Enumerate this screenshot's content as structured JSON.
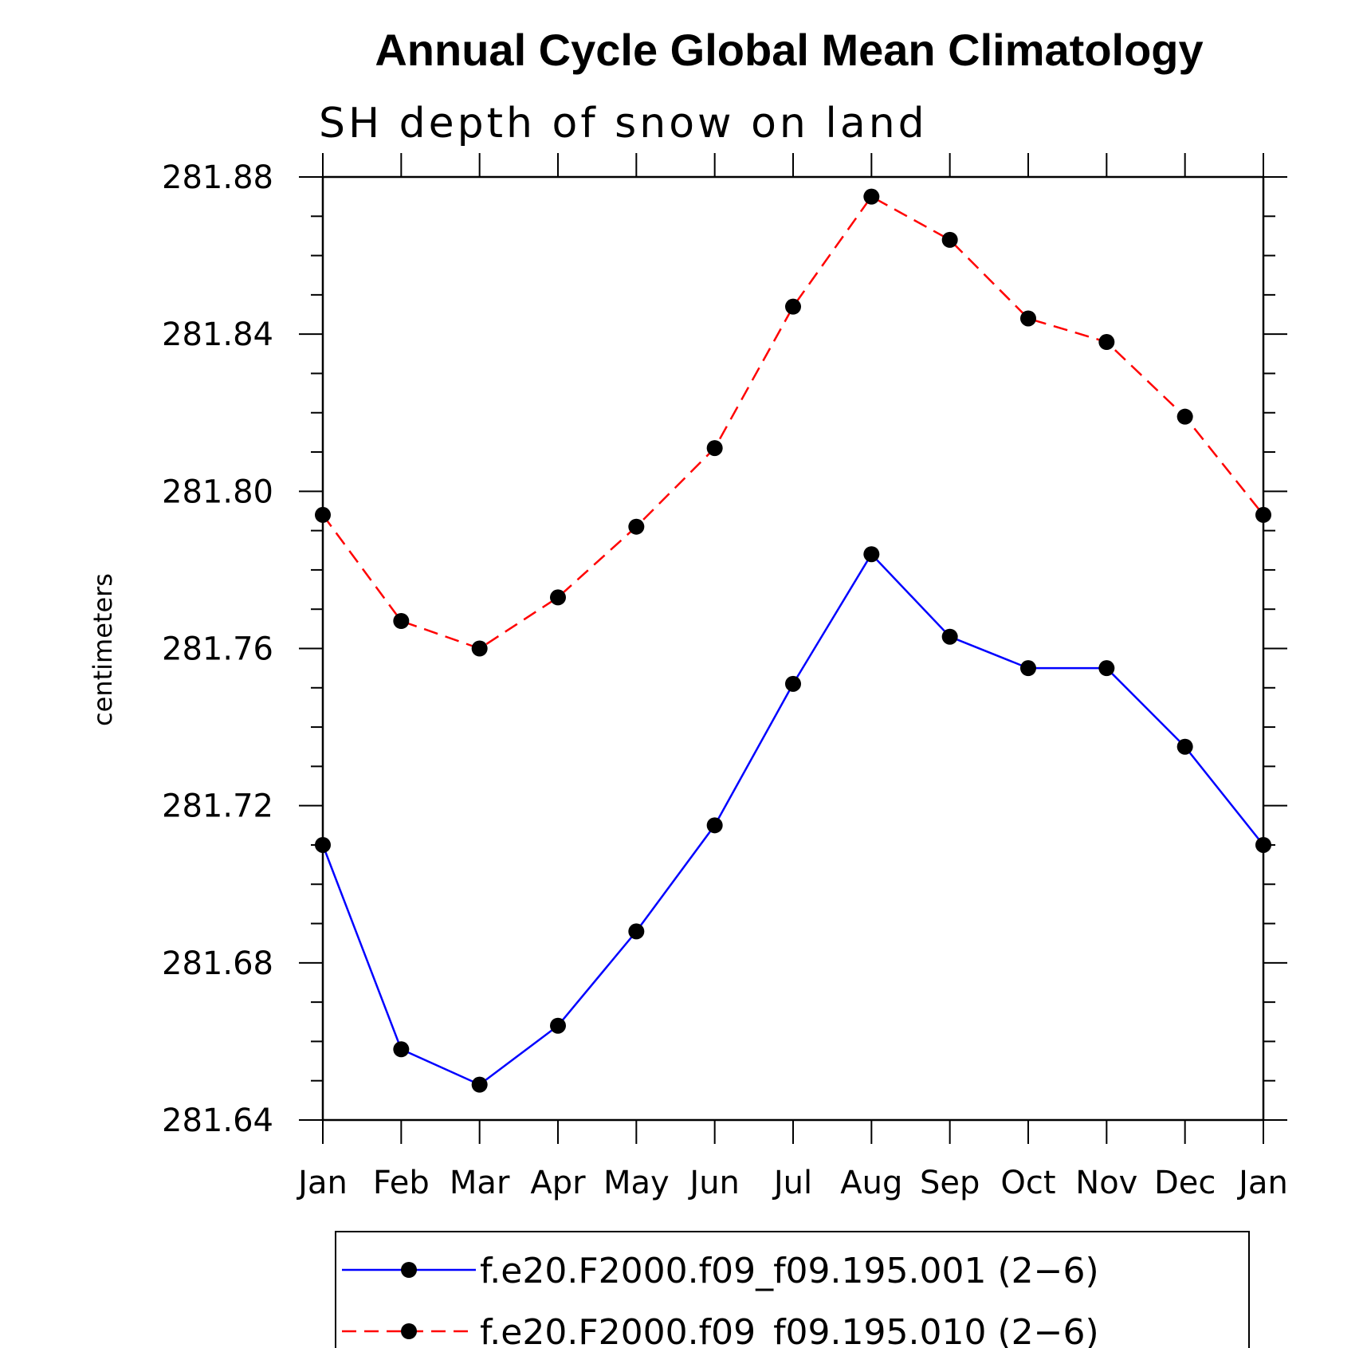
{
  "chart_data": {
    "type": "line",
    "title": "Annual Cycle Global Mean Climatology",
    "subtitle": "SH depth of snow on land",
    "xlabel": "",
    "ylabel": "centimeters",
    "categories": [
      "Jan",
      "Feb",
      "Mar",
      "Apr",
      "May",
      "Jun",
      "Jul",
      "Aug",
      "Sep",
      "Oct",
      "Nov",
      "Dec",
      "Jan"
    ],
    "ylim": [
      281.64,
      281.88
    ],
    "yticks": [
      "281.64",
      "281.68",
      "281.72",
      "281.76",
      "281.80",
      "281.84",
      "281.88"
    ],
    "series": [
      {
        "name": "f.e20.F2000.f09_f09.195.001 (2−6)",
        "color": "#0000ff",
        "dash": "solid",
        "values": [
          281.71,
          281.658,
          281.649,
          281.664,
          281.688,
          281.715,
          281.751,
          281.784,
          281.763,
          281.755,
          281.755,
          281.735,
          281.71
        ]
      },
      {
        "name": "f.e20.F2000.f09_f09.195.010 (2−6)",
        "color": "#ff0000",
        "dash": "dashed",
        "values": [
          281.794,
          281.767,
          281.76,
          281.773,
          281.791,
          281.811,
          281.847,
          281.875,
          281.864,
          281.844,
          281.838,
          281.819,
          281.794
        ]
      }
    ],
    "legend_position": "bottom"
  }
}
